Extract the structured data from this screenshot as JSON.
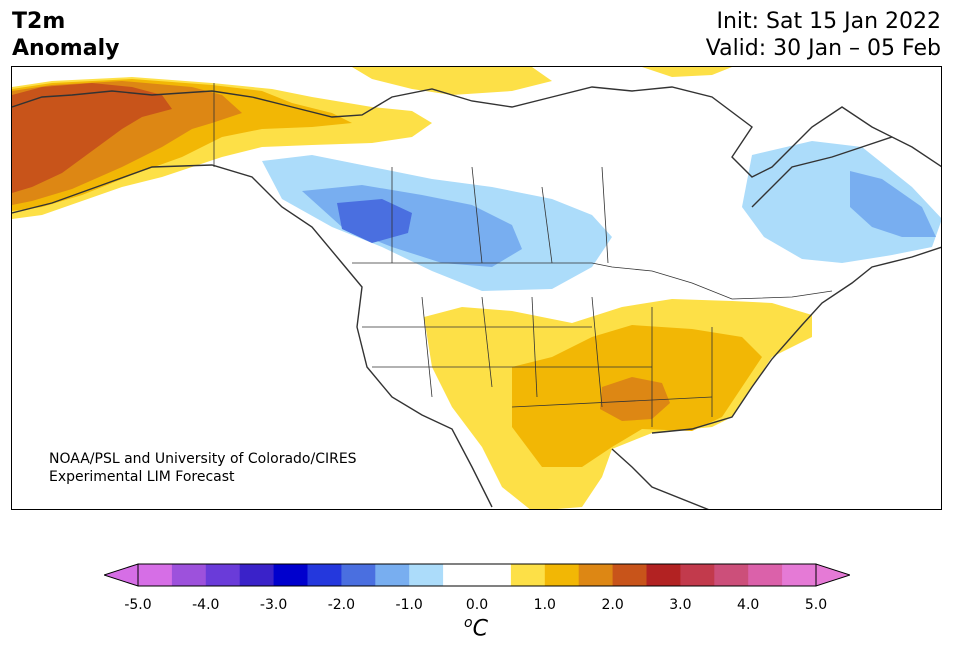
{
  "title": {
    "variable": "T2m",
    "subtitle": "Anomaly",
    "init": "Init: Sat 15 Jan 2022",
    "valid": "Valid: 30 Jan – 05 Feb"
  },
  "credit": {
    "line1": "NOAA/PSL and University of Colorado/CIRES",
    "line2": "Experimental LIM Forecast"
  },
  "colorbar": {
    "unit_base": "C",
    "unit_sup": "o",
    "tick_labels": [
      "-5.0",
      "-4.0",
      "-3.0",
      "-2.0",
      "-1.0",
      "0.0",
      "1.0",
      "2.0",
      "3.0",
      "4.0",
      "5.0"
    ],
    "colors": [
      "#d66ee6",
      "#9d51dc",
      "#6a3bd9",
      "#3a22c9",
      "#0000cd",
      "#2438dd",
      "#4a6fe0",
      "#78aef0",
      "#acdcfa",
      "#ffffff",
      "#ffffff",
      "#fde047",
      "#f2b705",
      "#dd8714",
      "#c8541a",
      "#b22222",
      "#c23a4c",
      "#cc4f7a",
      "#db61aa",
      "#e57ad6"
    ],
    "min_arrow_color": "#d66ee6",
    "max_arrow_color": "#e57ad6"
  }
}
